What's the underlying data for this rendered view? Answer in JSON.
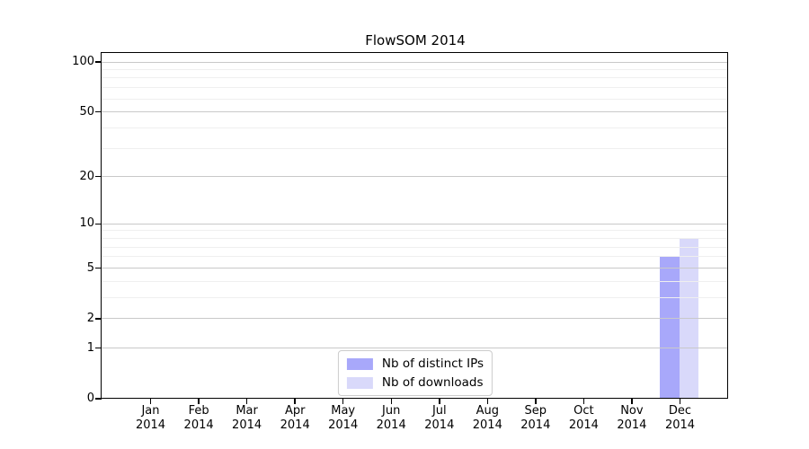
{
  "chart_data": {
    "type": "bar",
    "title": "FlowSOM 2014",
    "categories": [
      {
        "month": "Jan",
        "year": "2014"
      },
      {
        "month": "Feb",
        "year": "2014"
      },
      {
        "month": "Mar",
        "year": "2014"
      },
      {
        "month": "Apr",
        "year": "2014"
      },
      {
        "month": "May",
        "year": "2014"
      },
      {
        "month": "Jun",
        "year": "2014"
      },
      {
        "month": "Jul",
        "year": "2014"
      },
      {
        "month": "Aug",
        "year": "2014"
      },
      {
        "month": "Sep",
        "year": "2014"
      },
      {
        "month": "Oct",
        "year": "2014"
      },
      {
        "month": "Nov",
        "year": "2014"
      },
      {
        "month": "Dec",
        "year": "2014"
      }
    ],
    "series": [
      {
        "name": "Nb of distinct IPs",
        "color": "#a8a8fa",
        "values": [
          0,
          0,
          0,
          0,
          0,
          0,
          0,
          0,
          0,
          0,
          0,
          6
        ]
      },
      {
        "name": "Nb of downloads",
        "color": "#d9d9fa",
        "values": [
          0,
          0,
          0,
          0,
          0,
          0,
          0,
          0,
          0,
          0,
          0,
          8
        ]
      }
    ],
    "yscale": "log1p",
    "ylim": [
      0,
      112
    ],
    "y_major_ticks": [
      0,
      1,
      2,
      5,
      10,
      20,
      50,
      100
    ],
    "y_minor_gridlines": [
      3,
      4,
      6,
      7,
      8,
      9,
      30,
      40,
      60,
      70,
      80,
      90
    ],
    "grid": true,
    "legend_position": "lower center"
  },
  "colors": {
    "background": "#ffffff",
    "spine": "#000000",
    "grid_major": "#c9c9c9",
    "grid_minor": "#efefef",
    "legend_border": "#cccccc"
  }
}
